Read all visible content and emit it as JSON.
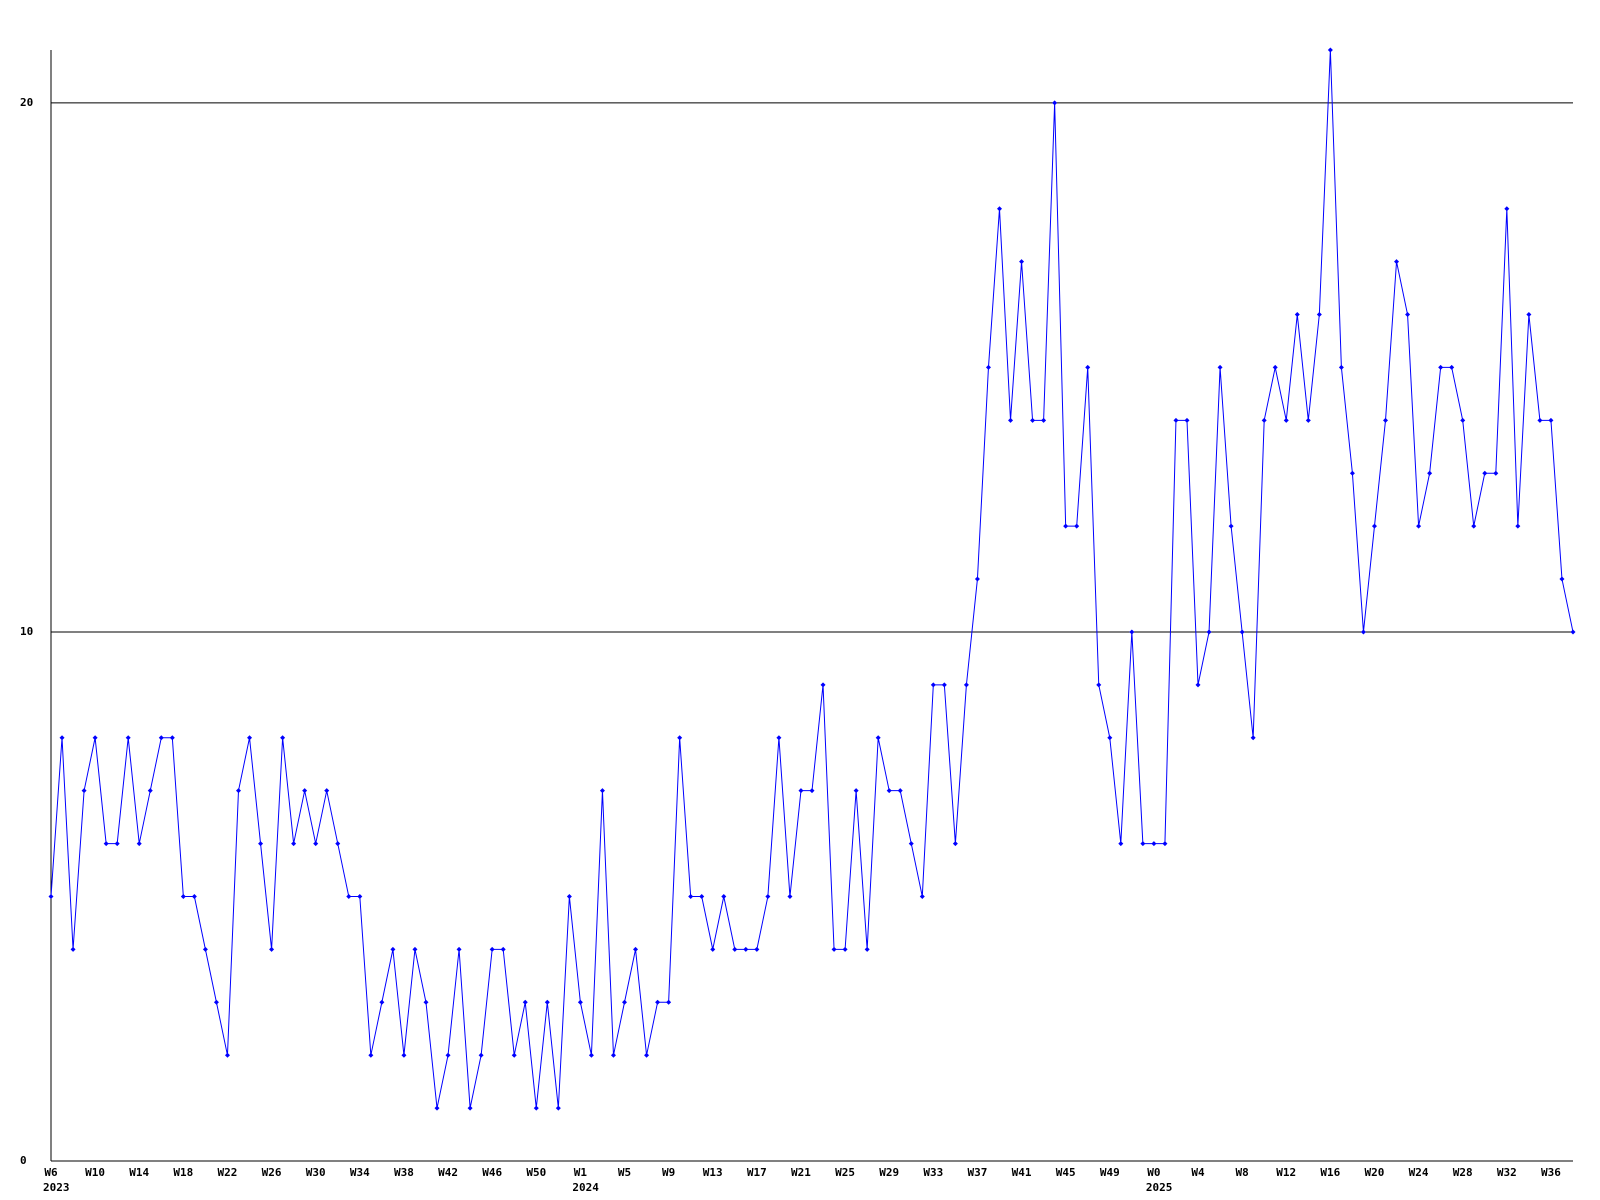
{
  "chart_data": {
    "type": "line",
    "categories": [
      "W6",
      null,
      null,
      null,
      "W10",
      null,
      null,
      null,
      "W14",
      null,
      null,
      null,
      "W18",
      null,
      null,
      null,
      "W22",
      null,
      null,
      null,
      "W26",
      null,
      null,
      null,
      "W30",
      null,
      null,
      null,
      "W34",
      null,
      null,
      null,
      "W38",
      null,
      null,
      null,
      "W42",
      null,
      null,
      null,
      "W46",
      null,
      null,
      null,
      "W50",
      null,
      null,
      null,
      "W1",
      null,
      null,
      null,
      "W5",
      null,
      null,
      null,
      "W9",
      null,
      null,
      null,
      "W13",
      null,
      null,
      null,
      "W17",
      null,
      null,
      null,
      "W21",
      null,
      null,
      null,
      "W25",
      null,
      null,
      null,
      "W29",
      null,
      null,
      null,
      "W33",
      null,
      null,
      null,
      "W37",
      null,
      null,
      null,
      "W41",
      null,
      null,
      null,
      "W45",
      null,
      null,
      null,
      "W49",
      null,
      null,
      null,
      "W0",
      null,
      null,
      null,
      "W4",
      null,
      null,
      null,
      "W8",
      null,
      null,
      null,
      "W12",
      null,
      null,
      null,
      "W16",
      null,
      null,
      null,
      "W20",
      null,
      null,
      null,
      "W24",
      null,
      null,
      null,
      "W28",
      null,
      null,
      null,
      "W32",
      null,
      null,
      null,
      "W36",
      null,
      null
    ],
    "category_years": [
      "2023",
      null,
      null,
      null,
      null,
      null,
      null,
      null,
      null,
      null,
      null,
      null,
      null,
      null,
      null,
      null,
      null,
      null,
      null,
      null,
      null,
      null,
      null,
      null,
      null,
      null,
      null,
      null,
      null,
      null,
      null,
      null,
      null,
      null,
      null,
      null,
      null,
      null,
      null,
      null,
      null,
      null,
      null,
      null,
      null,
      null,
      null,
      null,
      "2024",
      null,
      null,
      null,
      null,
      null,
      null,
      null,
      null,
      null,
      null,
      null,
      null,
      null,
      null,
      null,
      null,
      null,
      null,
      null,
      null,
      null,
      null,
      null,
      null,
      null,
      null,
      null,
      null,
      null,
      null,
      null,
      null,
      null,
      null,
      null,
      null,
      null,
      null,
      null,
      null,
      null,
      null,
      null,
      null,
      null,
      null,
      null,
      null,
      null,
      null,
      null,
      "2025",
      null,
      null,
      null,
      null,
      null,
      null,
      null,
      null,
      null,
      null,
      null,
      null,
      null,
      null,
      null,
      null,
      null,
      null,
      null,
      null,
      null,
      null,
      null,
      null,
      null,
      null,
      null,
      null,
      null,
      null,
      null,
      null,
      null,
      null,
      null,
      null,
      null
    ],
    "values": [
      5,
      8,
      4,
      7,
      8,
      6,
      6,
      8,
      6,
      7,
      8,
      8,
      5,
      5,
      4,
      3,
      2,
      7,
      8,
      6,
      4,
      8,
      6,
      7,
      6,
      7,
      6,
      5,
      5,
      2,
      3,
      4,
      2,
      4,
      3,
      1,
      2,
      4,
      1,
      2,
      4,
      4,
      2,
      3,
      1,
      3,
      1,
      5,
      3,
      2,
      7,
      2,
      3,
      4,
      2,
      3,
      3,
      8,
      5,
      5,
      4,
      5,
      4,
      4,
      4,
      5,
      8,
      5,
      7,
      7,
      9,
      4,
      4,
      7,
      4,
      8,
      7,
      7,
      6,
      5,
      9,
      9,
      6,
      9,
      11,
      15,
      18,
      14,
      17,
      14,
      14,
      20,
      12,
      12,
      15,
      9,
      8,
      6,
      10,
      6,
      6,
      6,
      14,
      14,
      9,
      10,
      15,
      12,
      10,
      8,
      14,
      15,
      14,
      16,
      14,
      16,
      21,
      15,
      13,
      10,
      12,
      14,
      17,
      16,
      12,
      13,
      15,
      15,
      14,
      12,
      13,
      13,
      18,
      12,
      16,
      14,
      14,
      11,
      10
    ],
    "color": "#0000ff",
    "ylim": [
      0,
      21
    ],
    "yticks": [
      0,
      10,
      20
    ],
    "grid": true
  }
}
